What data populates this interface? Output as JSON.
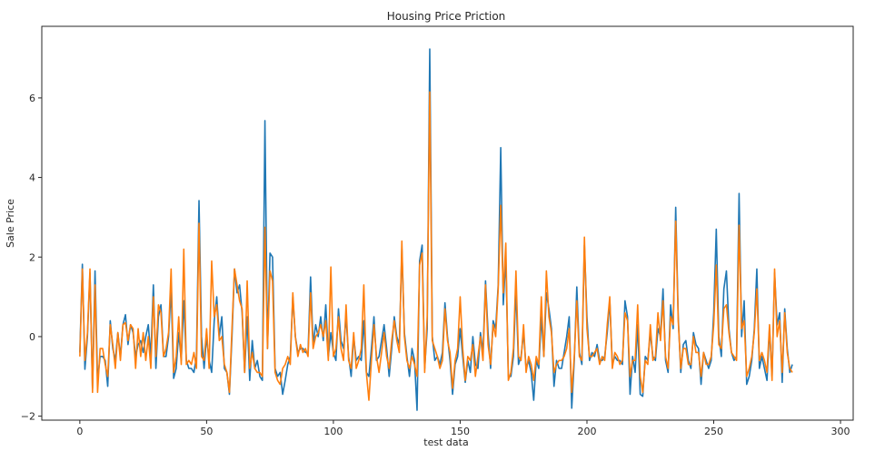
{
  "chart_data": {
    "type": "line",
    "title": "Housing Price Priction",
    "xlabel": "test data",
    "ylabel": "Sale Price",
    "xlim": [
      -15,
      305
    ],
    "ylim": [
      -2.1,
      7.8
    ],
    "x_ticks": [
      0,
      50,
      100,
      150,
      200,
      250,
      300
    ],
    "y_ticks": [
      -2,
      0,
      2,
      4,
      6
    ],
    "grid": false,
    "legend": "none",
    "colors": [
      "#1f77b4",
      "#ff7f0e"
    ],
    "series": [
      {
        "values": [
          -0.4,
          1.82,
          -0.82,
          0.0,
          1.6,
          -1.3,
          1.65,
          -1.1,
          -0.5,
          -0.5,
          -0.6,
          -1.25,
          0.4,
          -0.3,
          -0.6,
          0.1,
          -0.5,
          0.3,
          0.55,
          -0.2,
          0.3,
          0.1,
          -0.5,
          -0.2,
          -0.1,
          -0.4,
          0.0,
          0.3,
          -0.5,
          1.3,
          -0.8,
          0.5,
          0.8,
          -0.5,
          -0.5,
          0.0,
          1.2,
          -1.05,
          -0.8,
          0.1,
          -0.6,
          0.9,
          -0.6,
          -0.8,
          -0.8,
          -0.9,
          -0.5,
          3.42,
          0.0,
          -0.8,
          0.0,
          -0.6,
          -0.9,
          0.4,
          1.0,
          0.0,
          0.5,
          -0.8,
          -0.9,
          -1.45,
          0.0,
          1.7,
          1.1,
          1.3,
          0.6,
          -0.9,
          0.5,
          -1.1,
          -0.1,
          -0.8,
          -0.6,
          -1.0,
          -1.1,
          5.43,
          -0.3,
          2.1,
          2.0,
          -0.8,
          -1.0,
          -0.9,
          -1.45,
          -1.1,
          -0.7,
          -0.5,
          1.0,
          0.0,
          -0.4,
          -0.3,
          -0.3,
          -0.4,
          -0.4,
          1.5,
          -0.2,
          0.3,
          0.0,
          0.5,
          -0.1,
          0.8,
          -0.5,
          0.1,
          -0.4,
          -0.6,
          0.7,
          -0.1,
          -0.3,
          0.5,
          -0.5,
          -1.0,
          0.0,
          -0.6,
          -0.5,
          -0.6,
          0.4,
          -0.9,
          -1.0,
          -0.3,
          0.5,
          -0.6,
          -0.5,
          -0.1,
          0.3,
          -0.3,
          -1.0,
          -0.3,
          0.5,
          0.0,
          -0.2,
          2.2,
          0.1,
          -0.5,
          -1.0,
          -0.3,
          -0.6,
          -1.85,
          1.9,
          2.3,
          -0.8,
          0.2,
          7.23,
          0.0,
          -0.6,
          -0.5,
          -0.7,
          -0.4,
          0.85,
          0.0,
          -0.6,
          -1.45,
          -0.7,
          -0.5,
          0.2,
          -0.5,
          -1.15,
          -0.6,
          -0.9,
          0.0,
          -0.7,
          -0.8,
          0.1,
          -0.4,
          1.4,
          0.1,
          -0.8,
          0.4,
          0.2,
          1.3,
          4.75,
          0.8,
          2.0,
          -1.0,
          -1.0,
          -0.5,
          1.2,
          -0.7,
          -0.5,
          0.1,
          -0.8,
          -0.6,
          -0.9,
          -1.6,
          -0.6,
          -0.8,
          0.5,
          -0.5,
          1.1,
          0.7,
          0.2,
          -1.25,
          -0.6,
          -0.8,
          -0.8,
          -0.4,
          0.0,
          0.5,
          -1.8,
          -0.6,
          1.25,
          -0.4,
          -0.7,
          2.3,
          0.5,
          -0.6,
          -0.4,
          -0.5,
          -0.2,
          -0.6,
          -0.6,
          -0.5,
          0.1,
          0.9,
          -0.7,
          -0.5,
          -0.6,
          -0.6,
          -0.7,
          0.9,
          0.5,
          -1.45,
          -0.5,
          -0.9,
          0.3,
          -1.45,
          -1.5,
          -0.5,
          -0.6,
          0.1,
          -0.5,
          -0.6,
          0.2,
          0.0,
          1.2,
          -0.6,
          -0.9,
          0.8,
          0.2,
          3.25,
          0.5,
          -0.9,
          -0.2,
          -0.1,
          -0.6,
          -0.8,
          0.1,
          -0.2,
          -0.3,
          -1.2,
          -0.4,
          -0.6,
          -0.8,
          -0.6,
          0.6,
          2.7,
          0.0,
          -0.5,
          1.2,
          1.65,
          0.2,
          -0.4,
          -0.6,
          -0.5,
          3.6,
          0.0,
          0.9,
          -1.2,
          -1.0,
          -0.6,
          0.2,
          1.7,
          -0.8,
          -0.5,
          -0.8,
          -1.1,
          0.2,
          -1.0,
          1.6,
          0.3,
          0.6,
          -1.15,
          0.7,
          -0.3,
          -0.9,
          -0.7
        ],
        "values2": []
      },
      {
        "values": [
          -0.5,
          1.7,
          -0.6,
          0.1,
          1.7,
          -1.4,
          1.3,
          -1.4,
          -0.3,
          -0.3,
          -0.7,
          -1.0,
          0.3,
          -0.2,
          -0.8,
          0.1,
          -0.6,
          0.3,
          0.35,
          -0.1,
          0.3,
          0.2,
          -0.8,
          0.2,
          -0.5,
          0.1,
          -0.6,
          0.0,
          -0.8,
          1.0,
          -0.5,
          0.8,
          0.6,
          -0.5,
          -0.3,
          0.1,
          1.7,
          -0.9,
          -0.5,
          0.5,
          -0.7,
          2.2,
          -0.7,
          -0.6,
          -0.7,
          -0.4,
          -0.8,
          2.85,
          -0.5,
          -0.6,
          0.2,
          -0.8,
          1.9,
          0.5,
          0.8,
          -0.1,
          0.0,
          -0.7,
          -0.9,
          -1.4,
          0.2,
          1.7,
          1.3,
          0.9,
          0.7,
          -0.9,
          1.4,
          -0.8,
          -0.4,
          -0.8,
          -0.9,
          -0.9,
          -1.0,
          2.75,
          -0.3,
          1.65,
          1.4,
          -0.9,
          -1.1,
          -1.2,
          -0.8,
          -0.7,
          -0.5,
          -0.7,
          1.1,
          0.0,
          -0.5,
          -0.2,
          -0.4,
          -0.3,
          -0.5,
          1.1,
          -0.3,
          0.0,
          0.1,
          0.3,
          0.0,
          0.4,
          -0.6,
          1.75,
          -0.5,
          -0.3,
          0.5,
          -0.3,
          -0.6,
          0.8,
          -0.6,
          -0.8,
          0.1,
          -0.8,
          -0.6,
          -0.3,
          1.3,
          -0.9,
          -1.6,
          -0.6,
          0.3,
          -0.5,
          -0.9,
          -0.4,
          0.1,
          -0.5,
          -0.8,
          -0.1,
          0.4,
          -0.1,
          -0.4,
          2.4,
          0.0,
          -0.6,
          -0.8,
          -0.5,
          -0.7,
          -1.0,
          1.8,
          2.1,
          -0.9,
          0.5,
          6.15,
          -0.1,
          -0.3,
          -0.5,
          -0.8,
          -0.6,
          0.7,
          -0.1,
          -0.4,
          -1.3,
          -0.6,
          -0.3,
          1.0,
          -0.3,
          -1.1,
          -0.5,
          -0.6,
          -0.2,
          -1.0,
          -0.5,
          0.0,
          -0.6,
          1.3,
          -0.2,
          -0.7,
          0.3,
          0.0,
          1.2,
          3.3,
          1.1,
          2.35,
          -1.1,
          -0.9,
          -0.3,
          1.65,
          -0.5,
          -0.6,
          0.3,
          -0.9,
          -0.5,
          -0.7,
          -1.1,
          -0.5,
          -0.7,
          1.0,
          -0.5,
          1.65,
          0.5,
          0.1,
          -0.9,
          -0.7,
          -0.6,
          -0.6,
          -0.5,
          -0.3,
          0.2,
          -1.4,
          -0.5,
          0.9,
          -0.5,
          -0.6,
          2.5,
          0.2,
          -0.5,
          -0.5,
          -0.4,
          -0.3,
          -0.7,
          -0.5,
          -0.6,
          0.3,
          1.0,
          -0.8,
          -0.4,
          -0.5,
          -0.7,
          -0.6,
          0.6,
          0.4,
          -1.0,
          -0.6,
          -0.6,
          0.8,
          -1.0,
          -1.4,
          -0.6,
          -0.7,
          0.3,
          -0.6,
          -0.5,
          0.6,
          -0.1,
          0.9,
          -0.5,
          -0.8,
          0.5,
          0.3,
          2.9,
          0.4,
          -0.8,
          -0.3,
          -0.3,
          -0.7,
          -0.7,
          0.0,
          -0.4,
          -0.4,
          -1.0,
          -0.4,
          -0.7,
          -0.7,
          -0.5,
          0.3,
          1.8,
          -0.2,
          -0.3,
          0.7,
          0.8,
          0.1,
          -0.4,
          -0.5,
          -0.6,
          2.8,
          0.2,
          0.4,
          -1.0,
          -0.8,
          -0.5,
          0.1,
          1.2,
          -0.6,
          -0.4,
          -0.6,
          -0.9,
          0.3,
          -1.1,
          1.7,
          0.0,
          0.4,
          -0.9,
          0.6,
          -0.4,
          -0.8,
          -0.9
        ]
      }
    ]
  }
}
